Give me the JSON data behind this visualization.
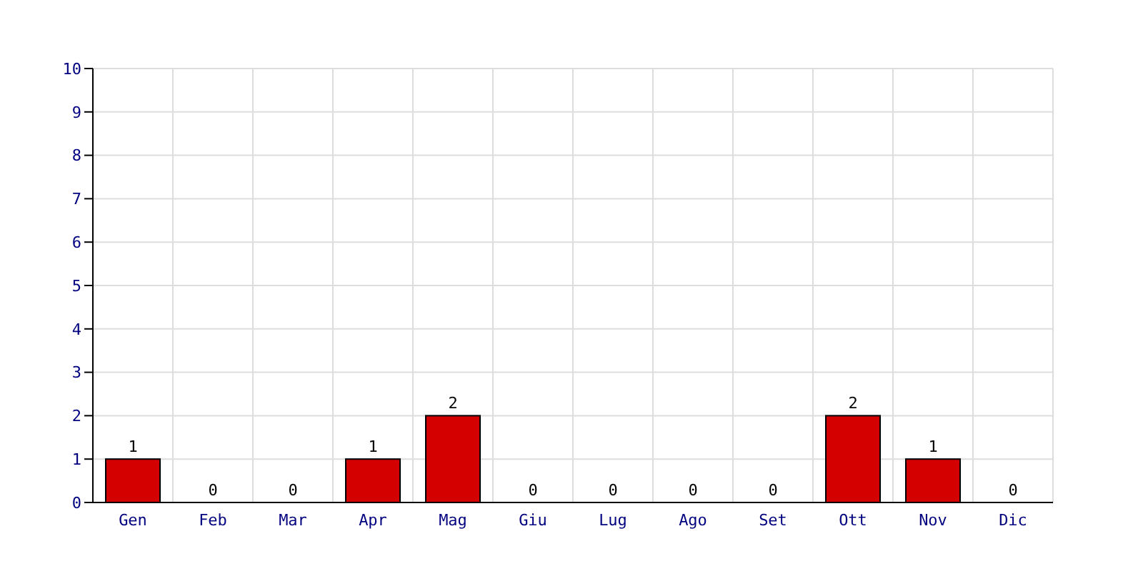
{
  "chart_data": {
    "type": "bar",
    "categories": [
      "Gen",
      "Feb",
      "Mar",
      "Apr",
      "Mag",
      "Giu",
      "Lug",
      "Ago",
      "Set",
      "Ott",
      "Nov",
      "Dic"
    ],
    "values": [
      1,
      0,
      0,
      1,
      2,
      0,
      0,
      0,
      0,
      2,
      1,
      0
    ],
    "color": "#d40000",
    "ylim": [
      0,
      10
    ],
    "yticks": [
      0,
      1,
      2,
      3,
      4,
      5,
      6,
      7,
      8,
      9,
      10
    ],
    "grid": true,
    "data_labels": true
  }
}
